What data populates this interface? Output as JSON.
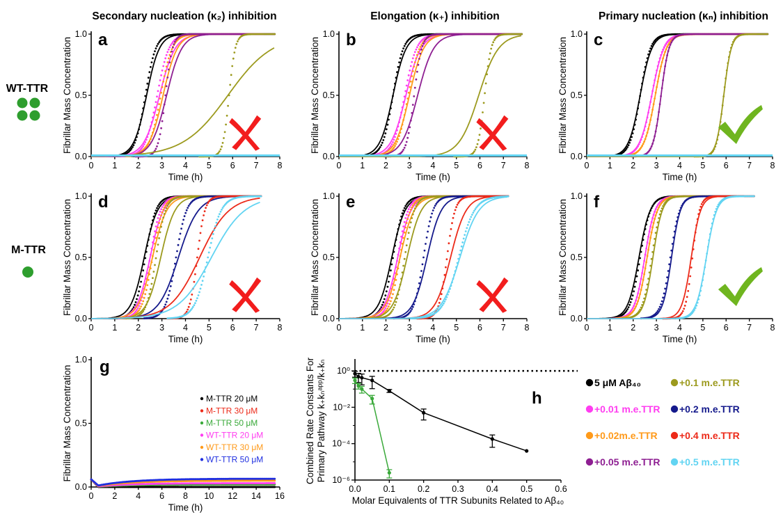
{
  "column_titles": [
    "Secondary nucleation (κ₂) inhibition",
    "Elongation (κ₊) inhibition",
    "Primary nucleation (κₙ) inhibition"
  ],
  "row_labels": [
    "WT-TTR",
    "M-TTR"
  ],
  "colors": {
    "black": "#000000",
    "magenta": "#ff3df0",
    "orange": "#ff9a1a",
    "purple": "#8e1f92",
    "olive": "#9c9a1e",
    "navy": "#151a8c",
    "red": "#ec2a19",
    "cyan": "#62d4f2",
    "green": "#3aa93a",
    "red_x": "#f21d1d",
    "check": "#6fb51f"
  },
  "chart_data": [
    {
      "id": "a",
      "type": "line",
      "panel_label": "a",
      "mark": "cross",
      "xlabel": "Time (h)",
      "ylabel": "Fibrillar Mass Concentration",
      "xlim": [
        0,
        8
      ],
      "ylim": [
        0,
        1
      ],
      "xticks": [
        "0",
        "1",
        "2",
        "3",
        "4",
        "5",
        "6",
        "7",
        "8"
      ],
      "yticks": [
        "0.0",
        "0.5",
        "1.0"
      ],
      "series": [
        {
          "color": "black",
          "data_t50": 2.3,
          "data_w": 0.22,
          "fit_t50": 2.35,
          "fit_w": 0.27,
          "tmax": 7.8
        },
        {
          "color": "magenta",
          "data_t50": 2.8,
          "data_w": 0.25,
          "fit_t50": 2.9,
          "fit_w": 0.33,
          "tmax": 7.3
        },
        {
          "color": "orange",
          "data_t50": 2.95,
          "data_w": 0.24,
          "fit_t50": 3.05,
          "fit_w": 0.3,
          "tmax": 7.3
        },
        {
          "color": "purple",
          "data_t50": 3.15,
          "data_w": 0.15,
          "fit_t50": 3.2,
          "fit_w": 0.32,
          "tmax": 7.8
        },
        {
          "color": "olive",
          "data_t50": 5.85,
          "data_w": 0.13,
          "fit_t50": 5.8,
          "fit_w": 0.95,
          "tmax": 7.8
        },
        {
          "color": "cyan",
          "flat": true,
          "tmax": 8
        }
      ]
    },
    {
      "id": "b",
      "type": "line",
      "panel_label": "b",
      "mark": "cross",
      "xlabel": "Time (h)",
      "ylabel": "Fibrillar Mass Concentration",
      "xlim": [
        0,
        8
      ],
      "ylim": [
        0,
        1
      ],
      "xticks": [
        "0",
        "1",
        "2",
        "3",
        "4",
        "5",
        "6",
        "7",
        "8"
      ],
      "yticks": [
        "0.0",
        "0.5",
        "1.0"
      ],
      "series": [
        {
          "color": "black",
          "data_t50": 2.3,
          "data_w": 0.22,
          "fit_t50": 2.3,
          "fit_w": 0.28,
          "tmax": 7.8
        },
        {
          "color": "magenta",
          "data_t50": 2.8,
          "data_w": 0.25,
          "fit_t50": 2.85,
          "fit_w": 0.32,
          "tmax": 7.3
        },
        {
          "color": "orange",
          "data_t50": 2.95,
          "data_w": 0.24,
          "fit_t50": 3.0,
          "fit_w": 0.3,
          "tmax": 7.3
        },
        {
          "color": "purple",
          "data_t50": 3.2,
          "data_w": 0.16,
          "fit_t50": 3.35,
          "fit_w": 0.34,
          "tmax": 7.8
        },
        {
          "color": "olive",
          "data_t50": 6.2,
          "data_w": 0.14,
          "fit_t50": 5.95,
          "fit_w": 0.42,
          "tmax": 7.8
        },
        {
          "color": "cyan",
          "flat": true,
          "tmax": 8
        }
      ]
    },
    {
      "id": "c",
      "type": "line",
      "panel_label": "c",
      "mark": "check",
      "xlabel": "Time (h)",
      "ylabel": "Fibrillar Mass Concentration",
      "xlim": [
        0,
        8
      ],
      "ylim": [
        0,
        1
      ],
      "xticks": [
        "0",
        "1",
        "2",
        "3",
        "4",
        "5",
        "6",
        "7",
        "8"
      ],
      "yticks": [
        "0.0",
        "0.5",
        "1.0"
      ],
      "series": [
        {
          "color": "black",
          "data_t50": 2.3,
          "data_w": 0.22,
          "fit_t50": 2.3,
          "fit_w": 0.25,
          "tmax": 7.8
        },
        {
          "color": "magenta",
          "data_t50": 2.8,
          "data_w": 0.25,
          "fit_t50": 2.8,
          "fit_w": 0.26,
          "tmax": 7.3
        },
        {
          "color": "orange",
          "data_t50": 2.95,
          "data_w": 0.24,
          "fit_t50": 2.95,
          "fit_w": 0.24,
          "tmax": 7.3
        },
        {
          "color": "purple",
          "data_t50": 3.2,
          "data_w": 0.17,
          "fit_t50": 3.2,
          "fit_w": 0.17,
          "tmax": 7.8
        },
        {
          "color": "olive",
          "data_t50": 5.9,
          "data_w": 0.15,
          "fit_t50": 5.9,
          "fit_w": 0.16,
          "tmax": 7.8
        },
        {
          "color": "cyan",
          "flat": true,
          "tmax": 8
        }
      ]
    },
    {
      "id": "d",
      "type": "line",
      "panel_label": "d",
      "mark": "cross",
      "xlabel": "Time (h)",
      "ylabel": "Fibrillar Mass Concentration",
      "xlim": [
        0,
        8
      ],
      "ylim": [
        0,
        1
      ],
      "xticks": [
        "0",
        "1",
        "2",
        "3",
        "4",
        "5",
        "6",
        "7",
        "8"
      ],
      "yticks": [
        "0.0",
        "0.5",
        "1.0"
      ],
      "series": [
        {
          "color": "black",
          "data_t50": 2.3,
          "data_w": 0.22,
          "fit_t50": 2.25,
          "fit_w": 0.28,
          "tmax": 7.2
        },
        {
          "color": "magenta",
          "data_t50": 2.5,
          "data_w": 0.22,
          "fit_t50": 2.5,
          "fit_w": 0.28,
          "tmax": 7.2
        },
        {
          "color": "orange",
          "data_t50": 2.6,
          "data_w": 0.22,
          "fit_t50": 2.6,
          "fit_w": 0.3,
          "tmax": 7.2
        },
        {
          "color": "olive",
          "data_t50": 2.75,
          "data_w": 0.2,
          "fit_t50": 2.95,
          "fit_w": 0.3,
          "tmax": 7.2
        },
        {
          "color": "navy",
          "data_t50": 3.6,
          "data_w": 0.22,
          "fit_t50": 3.7,
          "fit_w": 0.42,
          "tmax": 7.2
        },
        {
          "color": "red",
          "data_t50": 4.5,
          "data_w": 0.16,
          "fit_t50": 4.6,
          "fit_w": 0.62,
          "tmax": 7.2
        },
        {
          "color": "cyan",
          "data_t50": 4.95,
          "data_w": 0.28,
          "fit_t50": 5.1,
          "fit_w": 0.7,
          "tmax": 7.2
        }
      ]
    },
    {
      "id": "e",
      "type": "line",
      "panel_label": "e",
      "mark": "cross",
      "xlabel": "Time (h)",
      "ylabel": "Fibrillar Mass Concentration",
      "xlim": [
        0,
        8
      ],
      "ylim": [
        0,
        1
      ],
      "xticks": [
        "0",
        "1",
        "2",
        "3",
        "4",
        "5",
        "6",
        "7",
        "8"
      ],
      "yticks": [
        "0.0",
        "0.5",
        "1.0"
      ],
      "series": [
        {
          "color": "black",
          "data_t50": 2.3,
          "data_w": 0.22,
          "fit_t50": 2.25,
          "fit_w": 0.28,
          "tmax": 7.2
        },
        {
          "color": "magenta",
          "data_t50": 2.5,
          "data_w": 0.22,
          "fit_t50": 2.5,
          "fit_w": 0.28,
          "tmax": 7.2
        },
        {
          "color": "orange",
          "data_t50": 2.6,
          "data_w": 0.22,
          "fit_t50": 2.6,
          "fit_w": 0.3,
          "tmax": 7.2
        },
        {
          "color": "olive",
          "data_t50": 2.8,
          "data_w": 0.2,
          "fit_t50": 2.9,
          "fit_w": 0.3,
          "tmax": 7.2
        },
        {
          "color": "navy",
          "data_t50": 3.6,
          "data_w": 0.2,
          "fit_t50": 3.75,
          "fit_w": 0.3,
          "tmax": 7.2
        },
        {
          "color": "red",
          "data_t50": 4.6,
          "data_w": 0.17,
          "fit_t50": 4.75,
          "fit_w": 0.33,
          "tmax": 7.2
        },
        {
          "color": "cyan",
          "data_t50": 5.1,
          "data_w": 0.33,
          "fit_t50": 5.15,
          "fit_w": 0.4,
          "tmax": 7.2
        }
      ]
    },
    {
      "id": "f",
      "type": "line",
      "panel_label": "f",
      "mark": "check",
      "xlabel": "Time (h)",
      "ylabel": "Fibrillar Mass Concentration",
      "xlim": [
        0,
        8
      ],
      "ylim": [
        0,
        1
      ],
      "xticks": [
        "0",
        "1",
        "2",
        "3",
        "4",
        "5",
        "6",
        "7",
        "8"
      ],
      "yticks": [
        "0.0",
        "0.5",
        "1.0"
      ],
      "series": [
        {
          "color": "black",
          "data_t50": 2.3,
          "data_w": 0.22,
          "fit_t50": 2.25,
          "fit_w": 0.24,
          "tmax": 7.2
        },
        {
          "color": "magenta",
          "data_t50": 2.5,
          "data_w": 0.22,
          "fit_t50": 2.5,
          "fit_w": 0.22,
          "tmax": 7.2
        },
        {
          "color": "orange",
          "data_t50": 2.6,
          "data_w": 0.22,
          "fit_t50": 2.6,
          "fit_w": 0.22,
          "tmax": 7.2
        },
        {
          "color": "olive",
          "data_t50": 2.8,
          "data_w": 0.2,
          "fit_t50": 2.85,
          "fit_w": 0.2,
          "tmax": 7.2
        },
        {
          "color": "navy",
          "data_t50": 3.6,
          "data_w": 0.2,
          "fit_t50": 3.65,
          "fit_w": 0.19,
          "tmax": 7.2
        },
        {
          "color": "red",
          "data_t50": 4.55,
          "data_w": 0.15,
          "fit_t50": 4.5,
          "fit_w": 0.2,
          "tmax": 7.2
        },
        {
          "color": "cyan",
          "data_t50": 5.15,
          "data_w": 0.2,
          "fit_t50": 5.15,
          "fit_w": 0.22,
          "tmax": 7.2
        }
      ]
    },
    {
      "id": "g",
      "type": "scatter",
      "panel_label": "g",
      "xlabel": "Time (h)",
      "ylabel": "Fibrillar Mass Concentration",
      "xlim": [
        0,
        16
      ],
      "ylim": [
        0,
        1
      ],
      "xticks": [
        "0",
        "2",
        "4",
        "6",
        "8",
        "10",
        "12",
        "14",
        "16"
      ],
      "yticks": [
        "0.0",
        "0.5",
        "1.0"
      ],
      "series": [
        {
          "name": "M-TTR 20 μM",
          "color": "black",
          "plateau": 0.0,
          "tmax": 15.6
        },
        {
          "name": "M-TTR 30 μM",
          "color": "red",
          "plateau": 0.02,
          "tmax": 15.6
        },
        {
          "name": "M-TTR 50 μM",
          "color": "green",
          "plateau": 0.02,
          "tmax": 15.6
        },
        {
          "name": "WT-TTR 20 μM",
          "color": "magenta",
          "plateau": 0.03,
          "tmax": 15.6
        },
        {
          "name": "WT-TTR 30 μM",
          "color": "orange",
          "plateau": 0.05,
          "tmax": 15.6
        },
        {
          "name": "WT-TTR 50 μM",
          "color": "navy_g",
          "plateau": 0.065,
          "tmax": 15.6
        }
      ]
    },
    {
      "id": "h",
      "type": "line",
      "panel_label": "h",
      "yscale": "log",
      "xlabel": "Molar Equivalents of TTR Subunits Related to Aβ₄₀",
      "ylabel_line1": "Combined Rate Constants For",
      "ylabel_line2": "Primary Pathway k₊kₙᵃᵖᵖ/k₊kₙ",
      "xlim": [
        0,
        0.6
      ],
      "ylim_exp": [
        -6,
        0.5
      ],
      "xticks": [
        "0.0",
        "0.1",
        "0.2",
        "0.3",
        "0.4",
        "0.5",
        "0.6"
      ],
      "yticks": [
        "10⁰",
        "10⁻²",
        "10⁻⁴",
        "10⁻⁶"
      ],
      "reference_line": 1,
      "series": [
        {
          "color": "black",
          "x": [
            0,
            0.01,
            0.02,
            0.05,
            0.1,
            0.2,
            0.4,
            0.5
          ],
          "y": [
            0.7,
            0.48,
            0.42,
            0.3,
            0.08,
            0.005,
            0.00018,
            4e-05
          ],
          "err": [
            0.25,
            0.25,
            0.25,
            0.2,
            0.015,
            0.003,
            0.00012,
            0
          ]
        },
        {
          "color": "green",
          "x": [
            0,
            0.01,
            0.02,
            0.05,
            0.1
          ],
          "y": [
            0.3,
            0.15,
            0.1,
            0.03,
            2.5e-06
          ],
          "err": [
            0.1,
            0.05,
            0.04,
            0.015,
            1.2e-06
          ]
        }
      ]
    }
  ],
  "legend_h": [
    {
      "label": "5 μM Aβ₄₀",
      "color": "black"
    },
    {
      "label": "+0.1 m.e.TTR",
      "color": "olive"
    },
    {
      "label": "+0.01 m.e.TTR",
      "color": "magenta"
    },
    {
      "label": "+0.2 m.e.TTR",
      "color": "navy"
    },
    {
      "label": "+0.02m.e.TTR",
      "color": "orange"
    },
    {
      "label": "+0.4 m.e.TTR",
      "color": "red"
    },
    {
      "label": "+0.05 m.e.TTR",
      "color": "purple"
    },
    {
      "label": "+0.5 m.e.TTR",
      "color": "cyan"
    }
  ]
}
